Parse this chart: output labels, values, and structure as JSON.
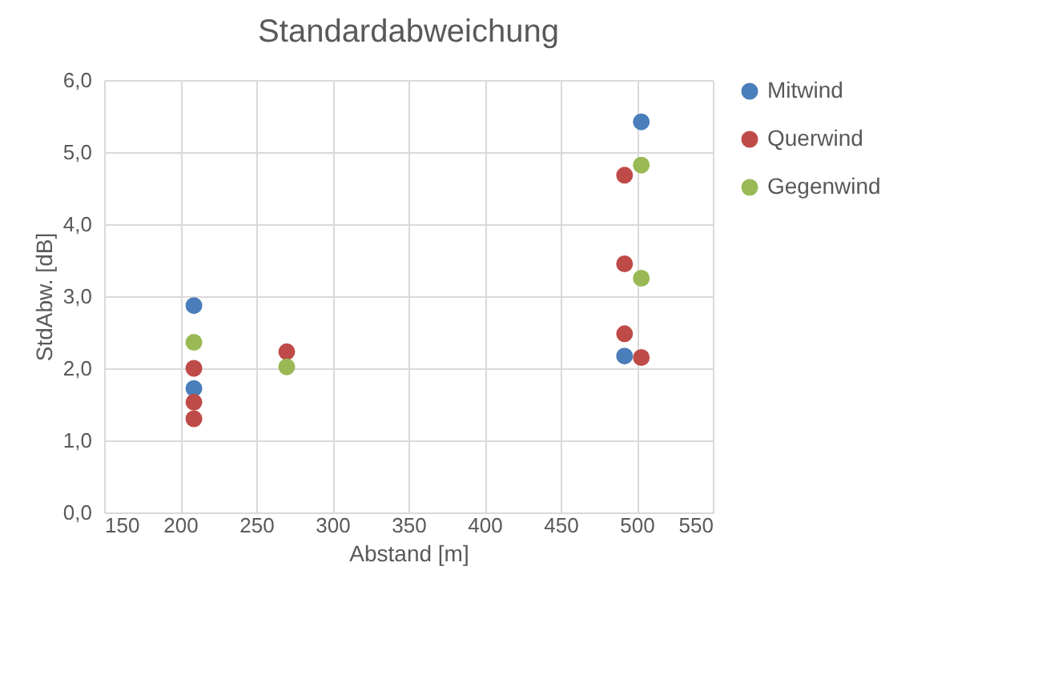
{
  "chart_data": {
    "type": "scatter",
    "title": "Standardabweichung",
    "xlabel": "Abstand [m]",
    "ylabel": "StdAbw. [dB]",
    "xlim": [
      150,
      550
    ],
    "xticks": [
      150,
      200,
      250,
      300,
      350,
      400,
      450,
      500,
      550
    ],
    "ylim": [
      0,
      6
    ],
    "yticks": [
      {
        "value": 0,
        "label": "0,0"
      },
      {
        "value": 1,
        "label": "1,0"
      },
      {
        "value": 2,
        "label": "2,0"
      },
      {
        "value": 3,
        "label": "3,0"
      },
      {
        "value": 4,
        "label": "4,0"
      },
      {
        "value": 5,
        "label": "5,0"
      },
      {
        "value": 6,
        "label": "6,0"
      }
    ],
    "grid": true,
    "legend": "right",
    "marker": "circle",
    "series": [
      {
        "name": "Mitwind",
        "color": "#4a7ebb",
        "x": [
          209,
          209,
          503,
          492
        ],
        "values": [
          2.87,
          1.72,
          5.42,
          2.17
        ]
      },
      {
        "name": "Querwind",
        "color": "#be4b48",
        "x": [
          209,
          209,
          209,
          270,
          492,
          492,
          492,
          503
        ],
        "values": [
          2.0,
          1.53,
          1.3,
          2.23,
          4.68,
          3.45,
          2.48,
          2.15
        ]
      },
      {
        "name": "Gegenwind",
        "color": "#98b954",
        "x": [
          209,
          270,
          503,
          503
        ],
        "values": [
          2.36,
          2.02,
          4.82,
          3.25
        ]
      }
    ]
  }
}
